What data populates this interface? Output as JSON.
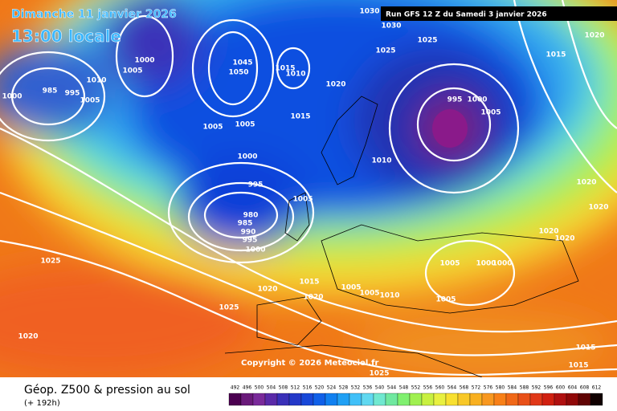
{
  "header": {
    "date": "Dimanche 11 janvier 2026",
    "time": "13:00 locale",
    "run": "Run GFS 12 Z du Samedi 3 janvier 2026"
  },
  "copyright": "Copyright © 2026 Meteociel.fr",
  "footer": {
    "title": "Géop. Z500 & pression au sol",
    "lead": "(+ 192h)"
  },
  "isobar_labels": [
    "1000",
    "985",
    "995",
    "1010",
    "1005",
    "1000",
    "1005",
    "1030",
    "1030",
    "1025",
    "1025",
    "1045",
    "1050",
    "1015",
    "1010",
    "1020",
    "1015",
    "1005",
    "1005",
    "1000",
    "995",
    "980",
    "985",
    "990",
    "995",
    "1000",
    "1005",
    "1010",
    "995",
    "1000",
    "1005",
    "1020",
    "1015",
    "1020",
    "1020",
    "1020",
    "1020",
    "1005",
    "1000",
    "1000",
    "1005",
    "1015",
    "1020",
    "1020",
    "1005",
    "1005",
    "1010",
    "1025",
    "1025",
    "1020",
    "1015",
    "1015",
    "1025"
  ],
  "legend_scale": {
    "values": [
      492,
      496,
      500,
      504,
      508,
      512,
      516,
      520,
      524,
      528,
      532,
      536,
      540,
      544,
      548,
      552,
      556,
      560,
      564,
      568,
      572,
      576,
      580,
      584,
      588,
      592,
      596,
      600,
      604,
      608,
      612
    ],
    "colors": [
      "#4b0050",
      "#6a1a7a",
      "#7a2a9a",
      "#5a2aa8",
      "#3a30b8",
      "#2438c8",
      "#1848d8",
      "#1060e8",
      "#1080f0",
      "#20a0f4",
      "#40c0f8",
      "#60d8f0",
      "#70e8d0",
      "#70e8a0",
      "#80f070",
      "#a0f050",
      "#c8f040",
      "#e8f040",
      "#f8e030",
      "#f8c828",
      "#f8b020",
      "#f89820",
      "#f88018",
      "#f06818",
      "#e85018",
      "#e03818",
      "#d02010",
      "#b01010",
      "#900808",
      "#600404",
      "#100000"
    ]
  }
}
